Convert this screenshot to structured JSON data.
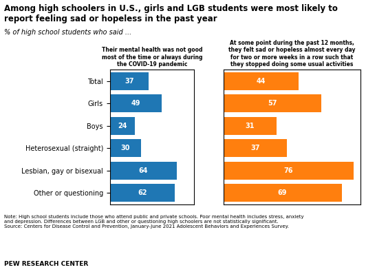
{
  "title": "Among high schoolers in U.S., girls and LGB students were most likely to\nreport feeling sad or hopeless in the past year",
  "subtitle": "% of high school students who said ...",
  "annotations": [
    "Note: High school students include those who attend public and private schools. Poor mental health includes stress, anxiety\nand depression. Differences between LGB and other or questioning high schoolers are not statistically significant.\nSource: Centers for Disease Control and Prevention, January-June 2021 Adolescent Behaviors and Experiences Survey.",
    "PEW RESEARCH CENTER"
  ],
  "chart_data": [
    {
      "type": "bar",
      "orientation": "horizontal",
      "title": "Their mental health was not good\nmost of the time or always during\nthe COVID-19 pandemic",
      "categories": [
        "Total",
        "Girls",
        "Boys",
        "Heterosexual (straight)",
        "Lesbian, gay or bisexual",
        "Other or questioning"
      ],
      "values": [
        37,
        49,
        24,
        30,
        64,
        62
      ],
      "xlim": [
        0,
        80
      ],
      "data_labels": true,
      "tick_labels": "y"
    },
    {
      "type": "bar",
      "orientation": "horizontal",
      "title": "At some point during the past 12 months,\nthey felt sad or hopeless almost every day\nfor two or more weeks in a row such that\nthey stopped doing some usual activities",
      "categories": [
        "Total",
        "Girls",
        "Boys",
        "Heterosexual (straight)",
        "Lesbian, gay or bisexual",
        "Other or questioning"
      ],
      "values": [
        44,
        57,
        31,
        37,
        76,
        69
      ],
      "xlim": [
        0,
        80
      ],
      "data_labels": true,
      "tick_labels": false
    }
  ]
}
